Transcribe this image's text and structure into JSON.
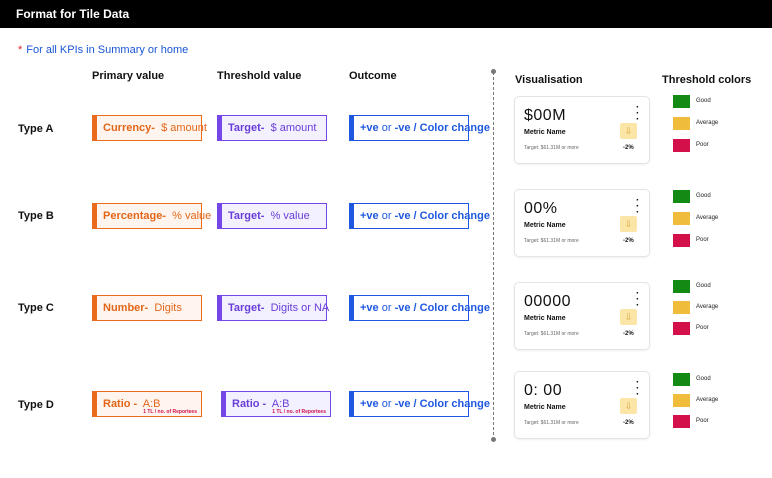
{
  "title": "Format for Tile Data",
  "note": {
    "star": "*",
    "text": "For all KPIs in Summary or home"
  },
  "headers": {
    "primary": "Primary value",
    "threshold": "Threshold value",
    "outcome": "Outcome",
    "visualisation": "Visualisation",
    "threshold_colors": "Threshold colors"
  },
  "rows": [
    {
      "type": "Type A",
      "primary_label": "Currency-",
      "primary_value": "$ amount",
      "threshold_label": "Target-",
      "threshold_value": "$ amount",
      "outcome": {
        "pos": "+ve",
        "or": "or",
        "rest": "-ve / Color change"
      },
      "card": {
        "value": "$00M",
        "name": "Metric Name",
        "target": "Target: $61.31M or more",
        "pct": "-2%"
      }
    },
    {
      "type": "Type B",
      "primary_label": "Percentage-",
      "primary_value": "% value",
      "threshold_label": "Target-",
      "threshold_value": "% value",
      "outcome": {
        "pos": "+ve",
        "or": "or",
        "rest": "-ve / Color change"
      },
      "card": {
        "value": "00%",
        "name": "Metric Name",
        "target": "Target: $61.31M or more",
        "pct": "-2%"
      }
    },
    {
      "type": "Type C",
      "primary_label": "Number-",
      "primary_value": "Digits",
      "threshold_label": "Target-",
      "threshold_value": "Digits or NA",
      "outcome": {
        "pos": "+ve",
        "or": "or",
        "rest": "-ve / Color change"
      },
      "card": {
        "value": "00000",
        "name": "Metric Name",
        "target": "Target: $61.31M or more",
        "pct": "-2%"
      }
    },
    {
      "type": "Type D",
      "primary_label": "Ratio -",
      "primary_value": "A:B",
      "primary_sub": "1 TL / no. of Reportees",
      "threshold_label": "Ratio -",
      "threshold_value": "A:B",
      "threshold_sub": "1 TL / no. of Reportees",
      "outcome": {
        "pos": "+ve",
        "or": "or",
        "rest": "-ve / Color change"
      },
      "card": {
        "value": "0: 00",
        "name": "Metric Name",
        "target": "Target: $61.31M or more",
        "pct": "-2%"
      }
    }
  ],
  "threshold_colors": [
    {
      "label": "Good",
      "color": "#138a13"
    },
    {
      "label": "Average",
      "color": "#f0bc3c"
    },
    {
      "label": "Poor",
      "color": "#d4104a"
    }
  ],
  "icons": {
    "kebab": "kebab-menu-icon",
    "down_arrow": "down-arrow-icon"
  }
}
